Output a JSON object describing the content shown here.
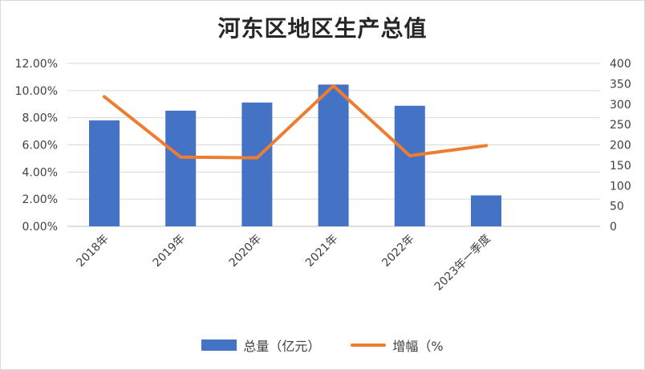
{
  "chart_data": {
    "type": "bar",
    "title": "河东区地区生产总值",
    "categories": [
      "2018年",
      "2019年",
      "2020年",
      "2021年",
      "2022年",
      "2023年一季度"
    ],
    "series": [
      {
        "name": "总量（亿元）",
        "type": "bar",
        "axis": "right",
        "color": "#4472c4",
        "values": [
          260,
          284,
          304,
          348,
          296,
          76
        ]
      },
      {
        "name": "增幅（%",
        "type": "line",
        "axis": "left",
        "color": "#ed7d31",
        "values": [
          0.0955,
          0.051,
          0.0505,
          0.1035,
          0.052,
          0.0595
        ]
      }
    ],
    "y_left": {
      "min": 0,
      "max": 0.12,
      "step": 0.02,
      "tick_labels": [
        "0.00%",
        "2.00%",
        "4.00%",
        "6.00%",
        "8.00%",
        "10.00%",
        "12.00%"
      ]
    },
    "y_right": {
      "min": 0,
      "max": 400,
      "step": 50,
      "tick_labels": [
        "0",
        "50",
        "100",
        "150",
        "200",
        "250",
        "300",
        "350",
        "400"
      ]
    },
    "grid": true,
    "legend": "bottom"
  }
}
